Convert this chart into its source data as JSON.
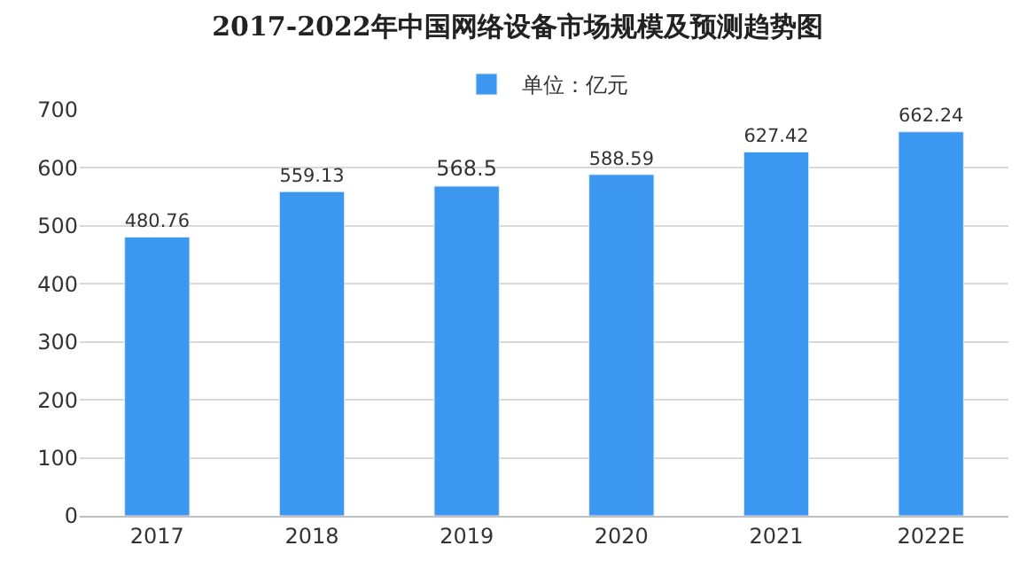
{
  "chart_data": {
    "type": "bar",
    "title": "2017-2022年中国网络设备市场规模及预测趋势图",
    "categories": [
      "2017",
      "2018",
      "2019",
      "2020",
      "2021",
      "2022E"
    ],
    "series": [
      {
        "name": "单位：亿元",
        "color": "#3c97f0",
        "values": [
          480.76,
          559.13,
          568.5,
          588.59,
          627.42,
          662.24
        ]
      }
    ],
    "ylim": [
      0,
      700
    ],
    "yticks": [
      0,
      100,
      200,
      300,
      400,
      500,
      600,
      700
    ],
    "grid": "y",
    "legend": "top",
    "data_labels": true
  }
}
